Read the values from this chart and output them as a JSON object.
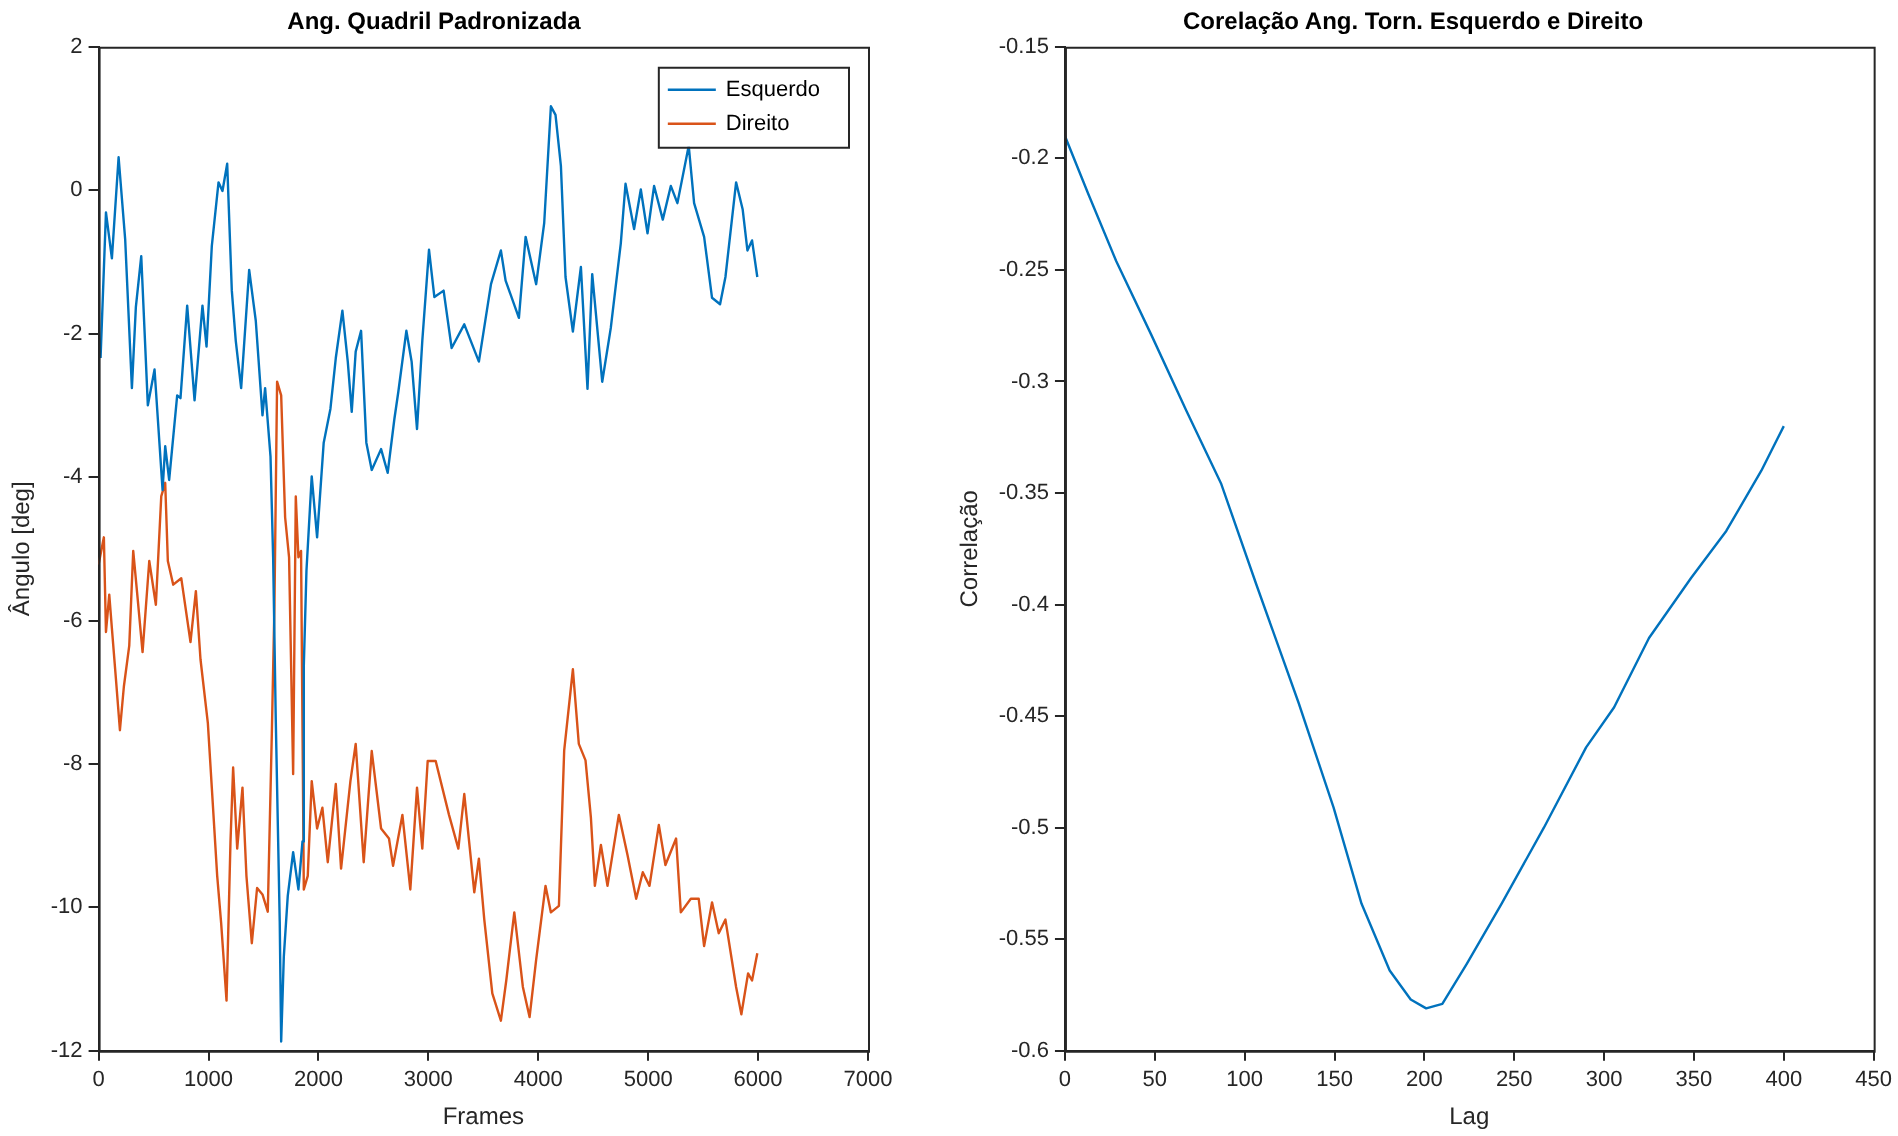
{
  "chart_data": [
    {
      "type": "line",
      "title": "Ang. Quadril Padronizada",
      "xlabel": "Frames",
      "ylabel": "Ângulo [deg]",
      "xlim": [
        0,
        7000
      ],
      "xticks": [
        0,
        1000,
        2000,
        3000,
        4000,
        5000,
        6000,
        7000
      ],
      "ylim": [
        -12,
        2
      ],
      "yticks": [
        -12,
        -10,
        -8,
        -6,
        -4,
        -2,
        0,
        2
      ],
      "legend": "top right",
      "marker": "none",
      "line_style": "solid",
      "series": [
        {
          "name": "Esquerdo",
          "color": "#0072bd",
          "x": [
            18,
            67,
            121,
            182,
            242,
            303,
            339,
            388,
            448,
            509,
            582,
            606,
            642,
            715,
            745,
            806,
            873,
            945,
            982,
            1030,
            1091,
            1127,
            1170,
            1212,
            1248,
            1297,
            1370,
            1430,
            1491,
            1515,
            1564,
            1588,
            1612,
            1648,
            1661,
            1685,
            1721,
            1770,
            1818,
            1855,
            1867,
            1891,
            1939,
            1988,
            2048,
            2109,
            2158,
            2218,
            2267,
            2303,
            2339,
            2388,
            2436,
            2485,
            2570,
            2630,
            2691,
            2727,
            2800,
            2848,
            2897,
            2945,
            3006,
            3055,
            3139,
            3212,
            3327,
            3460,
            3570,
            3660,
            3703,
            3824,
            3885,
            3981,
            4054,
            4115,
            4157,
            4206,
            4248,
            4315,
            4388,
            4448,
            4491,
            4582,
            4660,
            4751,
            4794,
            4872,
            4933,
            4994,
            5054,
            5133,
            5206,
            5266,
            5369,
            5418,
            5509,
            5581,
            5654,
            5703,
            5800,
            5860,
            5903,
            5945,
            5993
          ],
          "values": [
            -2.34,
            -0.31,
            -0.95,
            0.46,
            -0.69,
            -2.76,
            -1.63,
            -0.92,
            -3.0,
            -2.5,
            -4.18,
            -3.57,
            -4.04,
            -2.86,
            -2.9,
            -1.61,
            -2.93,
            -1.61,
            -2.18,
            -0.78,
            0.11,
            -0.01,
            0.37,
            -1.4,
            -2.1,
            -2.76,
            -1.11,
            -1.82,
            -3.14,
            -2.76,
            -3.71,
            -5.12,
            -7.39,
            -10.2,
            -11.87,
            -10.69,
            -9.84,
            -9.23,
            -9.75,
            -9.08,
            -6.63,
            -5.31,
            -3.99,
            -4.84,
            -3.52,
            -3.05,
            -2.34,
            -1.68,
            -2.39,
            -3.09,
            -2.25,
            -1.96,
            -3.52,
            -3.9,
            -3.61,
            -3.94,
            -3.19,
            -2.81,
            -1.96,
            -2.39,
            -3.33,
            -2.1,
            -0.83,
            -1.49,
            -1.4,
            -2.2,
            -1.87,
            -2.39,
            -1.31,
            -0.84,
            -1.26,
            -1.78,
            -0.65,
            -1.31,
            -0.46,
            1.17,
            1.05,
            0.34,
            -1.21,
            -1.97,
            -1.07,
            -2.77,
            -1.17,
            -2.67,
            -1.92,
            -0.74,
            0.09,
            -0.54,
            0.01,
            -0.6,
            0.06,
            -0.41,
            0.06,
            -0.18,
            0.62,
            -0.18,
            -0.65,
            -1.5,
            -1.59,
            -1.21,
            0.11,
            -0.27,
            -0.84,
            -0.7,
            -1.21
          ]
        },
        {
          "name": "Direito",
          "color": "#d95319",
          "x": [
            0,
            48,
            67,
            97,
            121,
            158,
            194,
            230,
            279,
            315,
            352,
            400,
            461,
            521,
            570,
            606,
            630,
            679,
            752,
            836,
            885,
            927,
            994,
            1030,
            1079,
            1115,
            1164,
            1200,
            1224,
            1261,
            1309,
            1345,
            1394,
            1442,
            1491,
            1539,
            1576,
            1600,
            1624,
            1661,
            1697,
            1733,
            1770,
            1794,
            1818,
            1842,
            1867,
            1903,
            1939,
            1988,
            2036,
            2085,
            2158,
            2206,
            2291,
            2339,
            2412,
            2485,
            2570,
            2642,
            2679,
            2764,
            2836,
            2897,
            2945,
            2994,
            3067,
            3188,
            3273,
            3327,
            3418,
            3460,
            3509,
            3582,
            3660,
            3709,
            3782,
            3860,
            3921,
            3981,
            4066,
            4115,
            4188,
            4236,
            4315,
            4369,
            4430,
            4479,
            4515,
            4570,
            4630,
            4733,
            4812,
            4891,
            4951,
            5012,
            5097,
            5157,
            5254,
            5297,
            5388,
            5460,
            5509,
            5581,
            5642,
            5703,
            5800,
            5848,
            5909,
            5945,
            5993
          ],
          "values": [
            -5.22,
            -4.84,
            -6.16,
            -5.64,
            -6.11,
            -6.82,
            -7.53,
            -6.92,
            -6.35,
            -5.03,
            -5.64,
            -6.44,
            -5.17,
            -5.78,
            -4.27,
            -4.08,
            -5.17,
            -5.5,
            -5.41,
            -6.3,
            -5.59,
            -6.54,
            -7.43,
            -8.33,
            -9.56,
            -10.22,
            -11.3,
            -9.08,
            -8.05,
            -9.18,
            -8.33,
            -9.56,
            -10.5,
            -9.73,
            -9.82,
            -10.06,
            -7.58,
            -5.78,
            -2.67,
            -2.86,
            -4.56,
            -5.12,
            -8.14,
            -4.27,
            -5.12,
            -5.03,
            -9.75,
            -9.56,
            -8.24,
            -8.9,
            -8.61,
            -9.37,
            -8.28,
            -9.46,
            -8.24,
            -7.72,
            -9.37,
            -7.82,
            -8.9,
            -9.04,
            -9.42,
            -8.71,
            -9.75,
            -8.33,
            -9.18,
            -7.96,
            -7.96,
            -8.71,
            -9.18,
            -8.42,
            -9.79,
            -9.32,
            -10.17,
            -11.2,
            -11.58,
            -11.02,
            -10.07,
            -11.11,
            -11.53,
            -10.73,
            -9.7,
            -10.07,
            -9.98,
            -7.81,
            -6.68,
            -7.72,
            -7.95,
            -8.75,
            -9.7,
            -9.13,
            -9.7,
            -8.71,
            -9.27,
            -9.88,
            -9.51,
            -9.7,
            -8.85,
            -9.41,
            -9.04,
            -10.07,
            -9.88,
            -9.88,
            -10.54,
            -9.93,
            -10.36,
            -10.17,
            -11.11,
            -11.49,
            -10.92,
            -11.02,
            -10.64
          ]
        }
      ]
    },
    {
      "type": "line",
      "title": "Corelação Ang. Torn. Esquerdo e Direito",
      "xlabel": "Lag",
      "ylabel": "Correlação",
      "xlim": [
        0,
        450
      ],
      "xticks": [
        0,
        50,
        100,
        150,
        200,
        250,
        300,
        350,
        400,
        450
      ],
      "ylim": [
        -0.6,
        -0.15
      ],
      "yticks": [
        -0.6,
        -0.55,
        -0.5,
        -0.45,
        -0.4,
        -0.35,
        -0.3,
        -0.25,
        -0.2,
        -0.15
      ],
      "marker": "none",
      "line_style": "solid",
      "series": [
        {
          "color": "#0072bd",
          "x": [
            0,
            13,
            28.5,
            48,
            67.5,
            87,
            106.5,
            130,
            149.5,
            165,
            180.7,
            192.4,
            201,
            210,
            223.6,
            243,
            266.5,
            290,
            305.6,
            325,
            348.5,
            368,
            387.5,
            400
          ],
          "values": [
            -0.19,
            -0.216,
            -0.246,
            -0.279,
            -0.313,
            -0.346,
            -0.391,
            -0.444,
            -0.491,
            -0.534,
            -0.564,
            -0.577,
            -0.581,
            -0.579,
            -0.561,
            -0.534,
            -0.5,
            -0.464,
            -0.446,
            -0.415,
            -0.388,
            -0.367,
            -0.34,
            -0.32
          ]
        }
      ]
    }
  ]
}
